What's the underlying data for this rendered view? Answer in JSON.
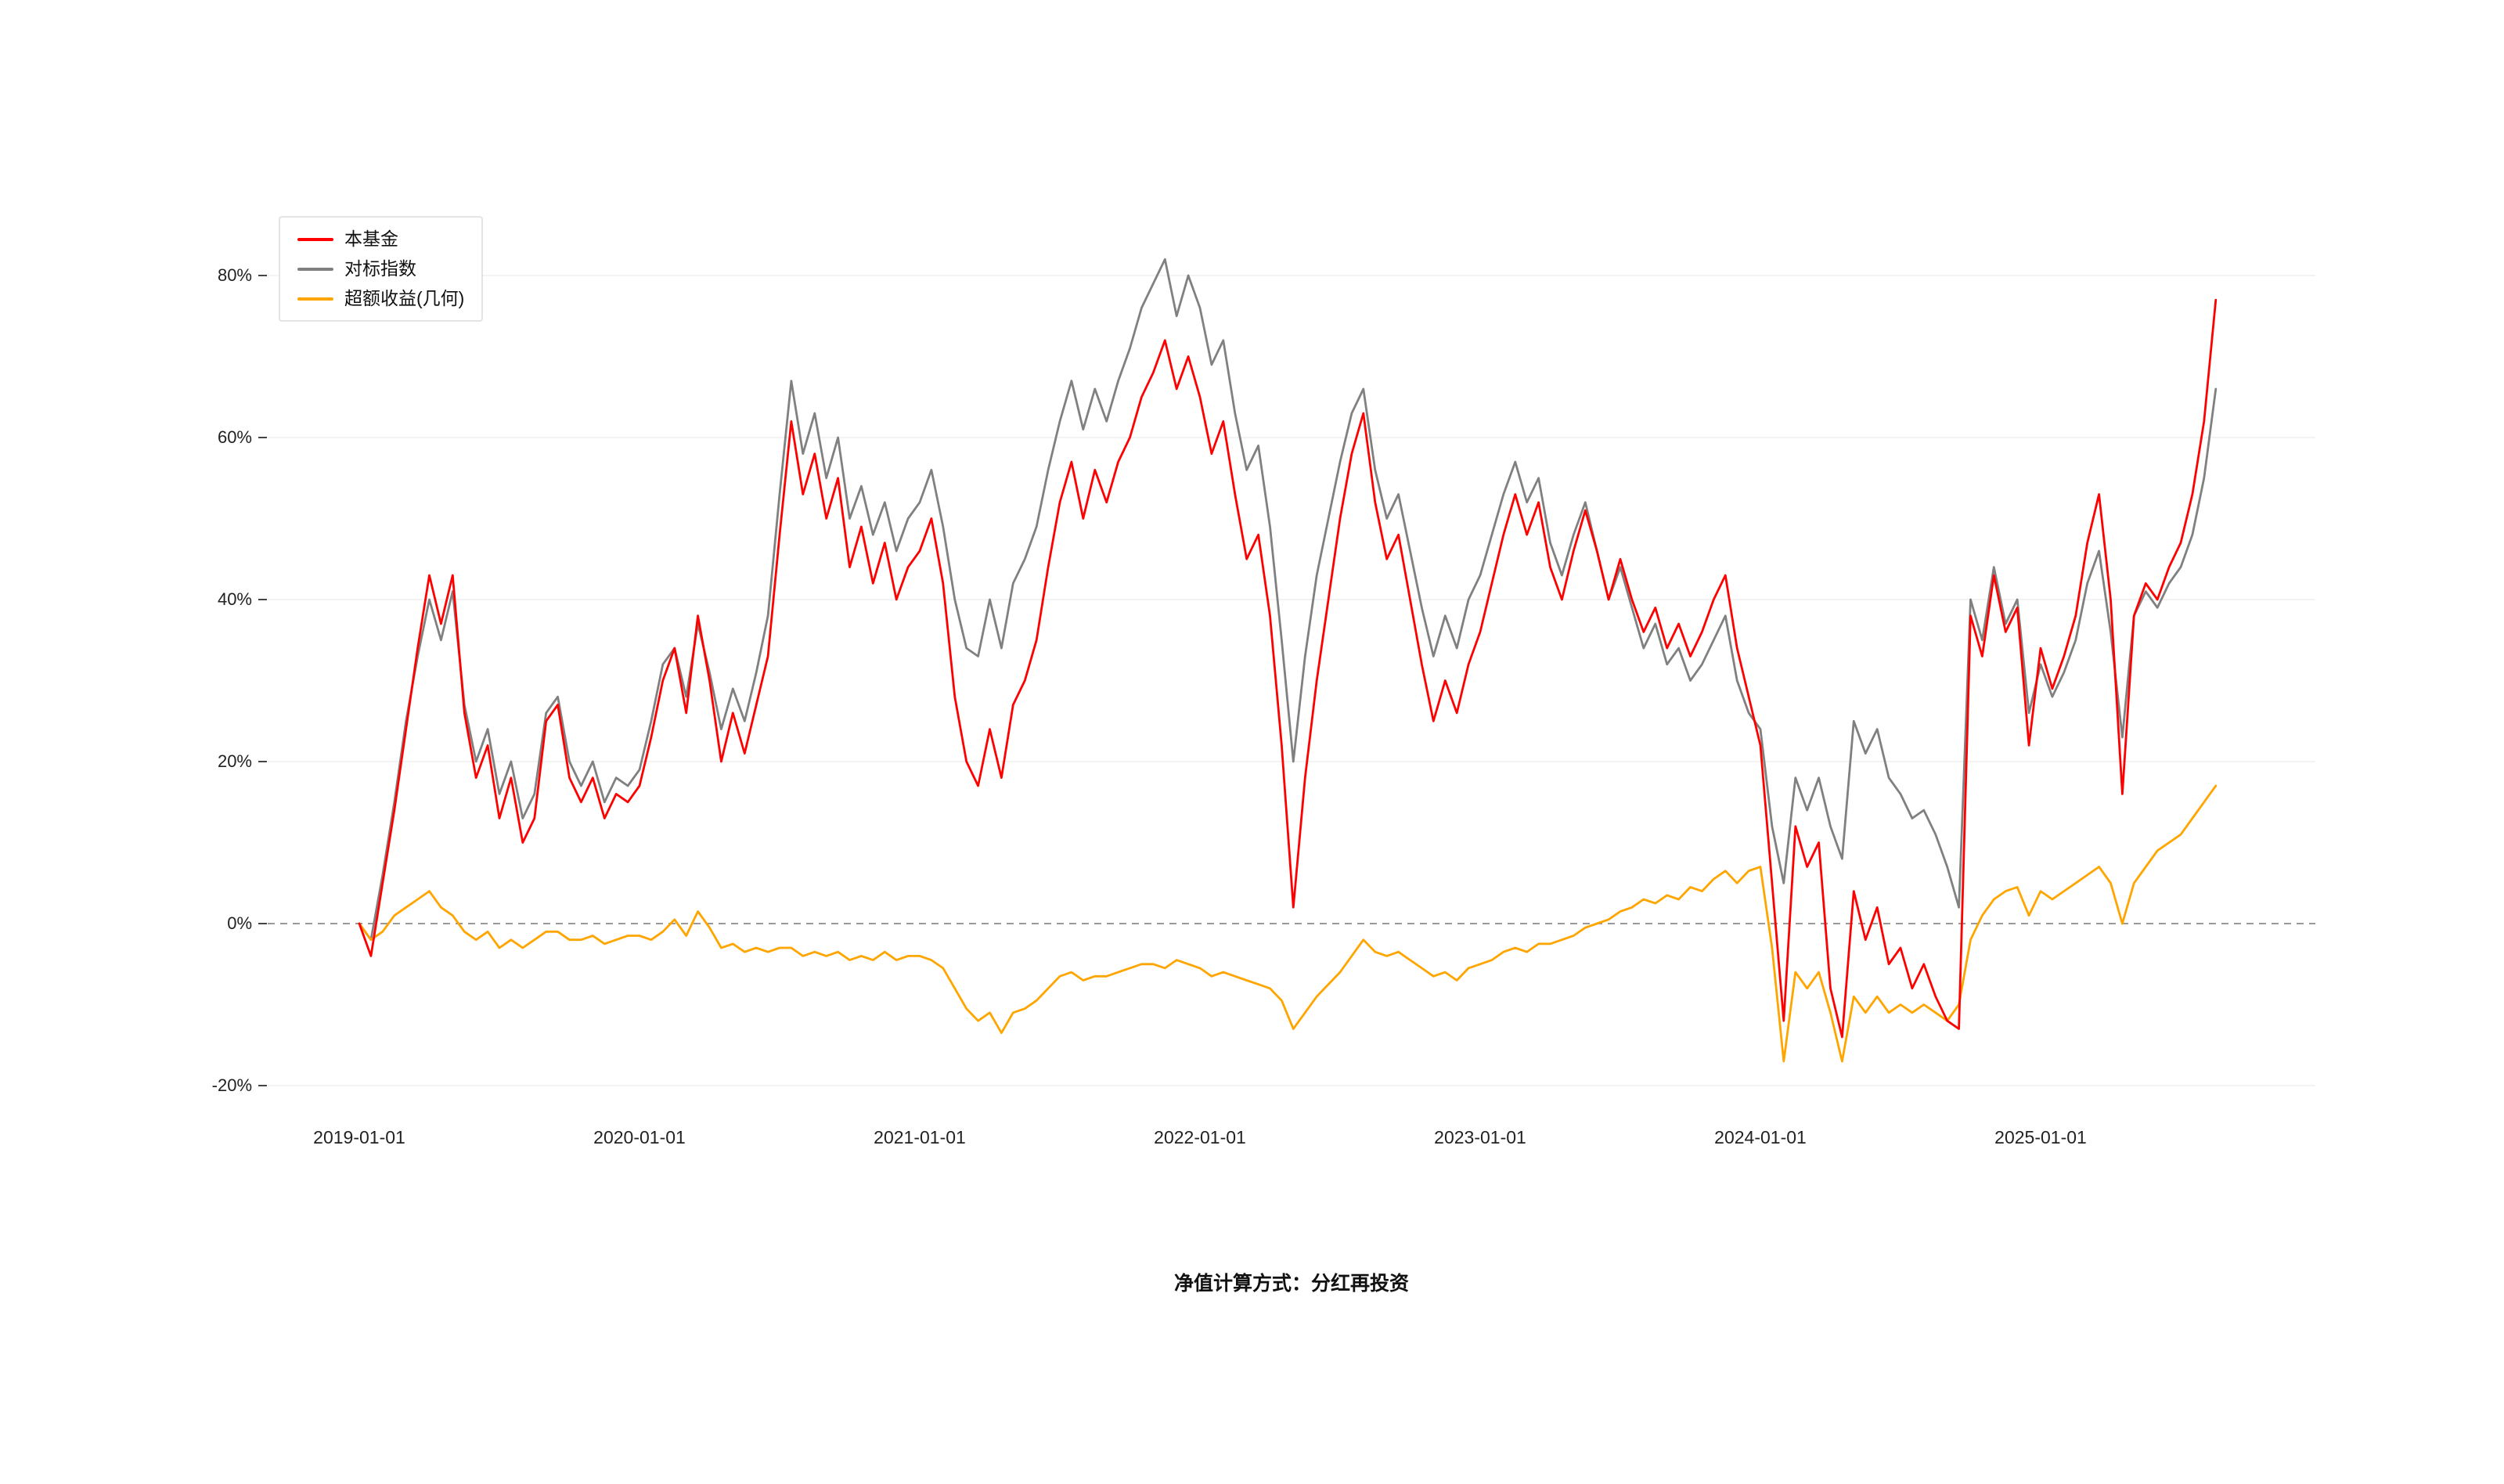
{
  "caption": "净值计算方式：分红再投资",
  "chart_data": {
    "type": "line",
    "title": "",
    "grid": "faint horizontal lines, dashed zero baseline",
    "legend_position": "top-left",
    "x_axis": {
      "tick_labels": [
        "2019-01-01",
        "2020-01-01",
        "2021-01-01",
        "2022-01-01",
        "2023-01-01",
        "2024-01-01",
        "2025-01-01"
      ],
      "tick_years": [
        2019,
        2020,
        2021,
        2022,
        2023,
        2024,
        2025
      ]
    },
    "y_axis": {
      "unit": "%",
      "tick_values": [
        -20,
        0,
        20,
        40,
        60,
        80
      ],
      "tick_labels": [
        "-20%",
        "0%",
        "20%",
        "40%",
        "60%",
        "80%"
      ],
      "range": [
        -24,
        86
      ],
      "zero_line_dashed": true
    },
    "x_grid": {
      "start_year": 2019,
      "points_per_year": 24,
      "count": 160,
      "end_year": 2025.625
    },
    "series": [
      {
        "id": "fund",
        "name": "本基金",
        "color": "#ff0000",
        "values": [
          0,
          -4,
          5,
          14,
          24,
          34,
          43,
          37,
          43,
          26,
          18,
          22,
          13,
          18,
          10,
          13,
          25,
          27,
          18,
          15,
          18,
          13,
          16,
          15,
          17,
          23,
          30,
          34,
          26,
          38,
          30,
          20,
          26,
          21,
          27,
          33,
          48,
          62,
          53,
          58,
          50,
          55,
          44,
          49,
          42,
          47,
          40,
          44,
          46,
          50,
          42,
          28,
          20,
          17,
          24,
          18,
          27,
          30,
          35,
          44,
          52,
          57,
          50,
          56,
          52,
          57,
          60,
          65,
          68,
          72,
          66,
          70,
          65,
          58,
          62,
          53,
          45,
          48,
          38,
          22,
          2,
          18,
          30,
          40,
          50,
          58,
          63,
          52,
          45,
          48,
          40,
          32,
          25,
          30,
          26,
          32,
          36,
          42,
          48,
          53,
          48,
          52,
          44,
          40,
          46,
          51,
          46,
          40,
          45,
          40,
          36,
          39,
          34,
          37,
          33,
          36,
          40,
          43,
          34,
          28,
          22,
          5,
          -12,
          12,
          7,
          10,
          -8,
          -14,
          4,
          -2,
          2,
          -5,
          -3,
          -8,
          -5,
          -9,
          -12,
          -13,
          38,
          33,
          43,
          36,
          39,
          22,
          34,
          29,
          33,
          38,
          47,
          53,
          40,
          16,
          38,
          42,
          40,
          44,
          47,
          53,
          62,
          77
        ]
      },
      {
        "id": "benchmark",
        "name": "对标指数",
        "color": "#808080",
        "values": [
          0,
          -2,
          6,
          15,
          25,
          33,
          40,
          35,
          41,
          27,
          20,
          24,
          16,
          20,
          13,
          16,
          26,
          28,
          20,
          17,
          20,
          15,
          18,
          17,
          19,
          25,
          32,
          34,
          28,
          37,
          31,
          24,
          29,
          25,
          31,
          38,
          53,
          67,
          58,
          63,
          55,
          60,
          50,
          54,
          48,
          52,
          46,
          50,
          52,
          56,
          49,
          40,
          34,
          33,
          40,
          34,
          42,
          45,
          49,
          56,
          62,
          67,
          61,
          66,
          62,
          67,
          71,
          76,
          79,
          82,
          75,
          80,
          76,
          69,
          72,
          63,
          56,
          59,
          49,
          35,
          20,
          33,
          43,
          50,
          57,
          63,
          66,
          56,
          50,
          53,
          46,
          39,
          33,
          38,
          34,
          40,
          43,
          48,
          53,
          57,
          52,
          55,
          47,
          43,
          48,
          52,
          46,
          40,
          44,
          39,
          34,
          37,
          32,
          34,
          30,
          32,
          35,
          38,
          30,
          26,
          24,
          12,
          5,
          18,
          14,
          18,
          12,
          8,
          25,
          21,
          24,
          18,
          16,
          13,
          14,
          11,
          7,
          2,
          40,
          35,
          44,
          37,
          40,
          26,
          32,
          28,
          31,
          35,
          42,
          46,
          36,
          23,
          38,
          41,
          39,
          42,
          44,
          48,
          55,
          66
        ]
      },
      {
        "id": "excess-geometric",
        "name": "超额收益(几何)",
        "color": "#ffa500",
        "values": [
          0,
          -2,
          -1,
          1,
          2,
          3,
          4,
          2,
          1,
          -1,
          -2,
          -1,
          -3,
          -2,
          -3,
          -2,
          -1,
          -1,
          -2,
          -2,
          -1.5,
          -2.5,
          -2,
          -1.5,
          -1.5,
          -2,
          -1,
          0.5,
          -1.5,
          1.5,
          -0.5,
          -3,
          -2.5,
          -3.5,
          -3,
          -3.5,
          -3,
          -3,
          -4,
          -3.5,
          -4,
          -3.5,
          -4.5,
          -4,
          -4.5,
          -3.5,
          -4.5,
          -4,
          -4,
          -4.5,
          -5.5,
          -8,
          -10.5,
          -12,
          -11,
          -13.5,
          -11,
          -10.5,
          -9.5,
          -8,
          -6.5,
          -6,
          -7,
          -6.5,
          -6.5,
          -6,
          -5.5,
          -5,
          -5,
          -5.5,
          -4.5,
          -5,
          -5.5,
          -6.5,
          -6,
          -6.5,
          -7,
          -7.5,
          -8,
          -9.5,
          -13,
          -11,
          -9,
          -7.5,
          -6,
          -4,
          -2,
          -3.5,
          -4,
          -3.5,
          -4.5,
          -5.5,
          -6.5,
          -6,
          -7,
          -5.5,
          -5,
          -4.5,
          -3.5,
          -3,
          -3.5,
          -2.5,
          -2.5,
          -2,
          -1.5,
          -0.5,
          0,
          0.5,
          1.5,
          2,
          3,
          2.5,
          3.5,
          3,
          4.5,
          4,
          5.5,
          6.5,
          5,
          6.5,
          7,
          -3,
          -17,
          -6,
          -8,
          -6,
          -11,
          -17,
          -9,
          -11,
          -9,
          -11,
          -10,
          -11,
          -10,
          -11,
          -12,
          -10,
          -2,
          1,
          3,
          4,
          4.5,
          1,
          4,
          3,
          4,
          5,
          6,
          7,
          5,
          0,
          5,
          7,
          9,
          10,
          11,
          13,
          15,
          17
        ]
      }
    ]
  }
}
